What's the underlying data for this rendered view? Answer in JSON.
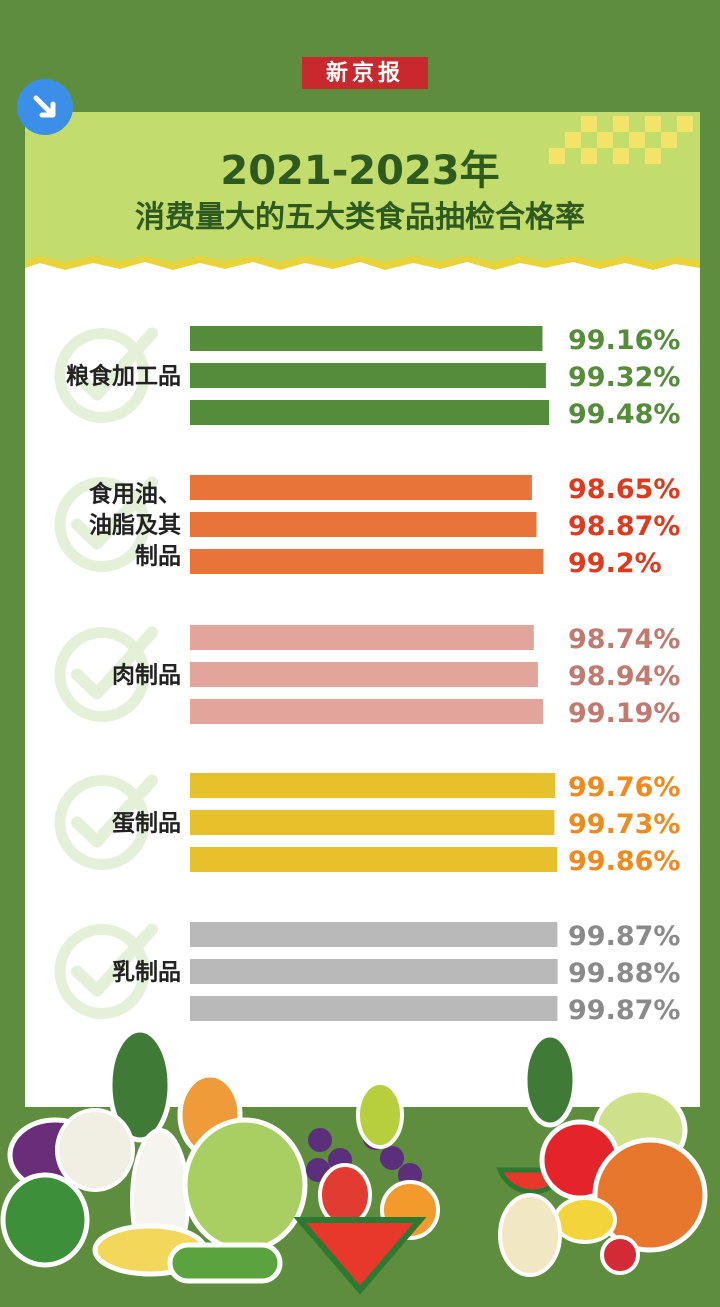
{
  "brand": {
    "logo_text": "新京报"
  },
  "header": {
    "title_line1": "2021-2023年",
    "title_line2": "消费量大的五大类食品抽检合格率"
  },
  "icons": {
    "corner": "arrow-down-right-icon",
    "category": "check-icon"
  },
  "colors": {
    "background": "#5e8d3e",
    "header": "#c3dc6e",
    "grain": "#558c3a",
    "oil": "#e8743a",
    "meat": "#e2a49b",
    "egg": "#e6c12b",
    "dairy": "#b9b9b9"
  },
  "chart_data": {
    "type": "bar",
    "orientation": "horizontal",
    "title": "2021-2023年 消费量大的五大类食品抽检合格率",
    "xlabel": "",
    "ylabel": "",
    "grid": false,
    "groups": [
      {
        "name": "粮食加工品",
        "label_lines": [
          "粮食加工品"
        ],
        "values": [
          99.16,
          99.32,
          99.48
        ],
        "labels": [
          "99.16%",
          "99.32%",
          "99.48%"
        ],
        "bar_color": "#558c3a",
        "text_color": "#558c3a"
      },
      {
        "name": "食用油、油脂及其制品",
        "label_lines": [
          "食用油、",
          "油脂及其",
          "制品"
        ],
        "values": [
          98.65,
          98.87,
          99.2
        ],
        "labels": [
          "98.65%",
          "98.87%",
          "99.2%"
        ],
        "bar_color": "#e8743a",
        "text_color": "#df3a1e"
      },
      {
        "name": "肉制品",
        "label_lines": [
          "肉制品"
        ],
        "values": [
          98.74,
          98.94,
          99.19
        ],
        "labels": [
          "98.74%",
          "98.94%",
          "99.19%"
        ],
        "bar_color": "#e2a49b",
        "text_color": "#c17a70"
      },
      {
        "name": "蛋制品",
        "label_lines": [
          "蛋制品"
        ],
        "values": [
          99.76,
          99.73,
          99.86
        ],
        "labels": [
          "99.76%",
          "99.73%",
          "99.86%"
        ],
        "bar_color": "#e6c12b",
        "text_color": "#f08a1c"
      },
      {
        "name": "乳制品",
        "label_lines": [
          "乳制品"
        ],
        "values": [
          99.87,
          99.88,
          99.87
        ],
        "labels": [
          "99.87%",
          "99.88%",
          "99.87%"
        ],
        "bar_color": "#b9b9b9",
        "text_color": "#8a8a8a"
      }
    ]
  }
}
